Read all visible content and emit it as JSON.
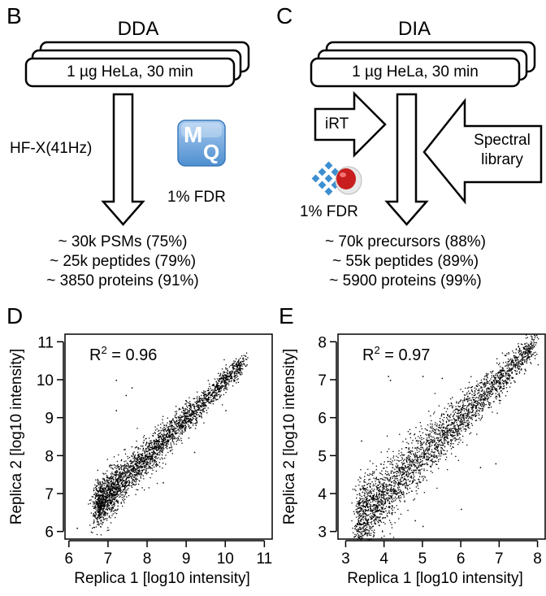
{
  "panels": {
    "B": {
      "letter": "B",
      "title": "DDA",
      "sample_label": "1 µg HeLa, 30 min",
      "instrument_label": "HF-X(41Hz)",
      "software_icon": "maxquant-icon",
      "software_icon_text_top": "M",
      "software_icon_text_bottom": "Q",
      "fdr_label": "1% FDR",
      "results": [
        "~ 30k PSMs (75%)",
        "~ 25k peptides (79%)",
        "~ 3850 proteins (91%)"
      ]
    },
    "C": {
      "letter": "C",
      "title": "DIA",
      "sample_label": "1 µg HeLa, 30 min",
      "irt_label": "iRT",
      "library_label_line1": "Spectral",
      "library_label_line2": "library",
      "software_icon": "spectronaut-icon",
      "fdr_label": "1% FDR",
      "results": [
        "~ 70k precursors (88%)",
        "~ 55k peptides (89%)",
        "~ 5900 proteins (99%)"
      ]
    },
    "D": {
      "letter": "D"
    },
    "E": {
      "letter": "E"
    }
  },
  "colors": {
    "maxquant_blue": "#5b9bd8",
    "maxquant_light": "#a9ccf0",
    "spectronaut_blue": "#3d8fd0",
    "spectronaut_red": "#c81e1e"
  },
  "chart_data": [
    {
      "panel": "D",
      "type": "scatter",
      "title": "",
      "annotation": "R² = 0.96",
      "annotation_base": "R",
      "annotation_sup": "2",
      "annotation_rest": " = 0.96",
      "xlabel": "Replica 1 [log10 intensity]",
      "ylabel": "Replica 2 [log10 intensity]",
      "xlim": [
        5.9,
        11.2
      ],
      "ylim": [
        5.8,
        11.2
      ],
      "xticks": [
        6,
        7,
        8,
        9,
        10,
        11
      ],
      "yticks": [
        6,
        7,
        8,
        9,
        10,
        11
      ],
      "grid": false,
      "r_squared": 0.96,
      "trend": {
        "x_range": [
          6.2,
          10.45
        ],
        "slope": 1.0,
        "intercept": 0.0,
        "spread": 0.13
      },
      "n_points_approx": 3850,
      "outliers": [
        [
          7.2,
          10.0
        ],
        [
          7.6,
          9.8
        ],
        [
          7.45,
          9.6
        ],
        [
          7.2,
          9.2
        ],
        [
          10.0,
          9.2
        ],
        [
          9.2,
          8.1
        ],
        [
          8.4,
          7.3
        ],
        [
          6.85,
          6.25
        ],
        [
          6.2,
          6.1
        ]
      ]
    },
    {
      "panel": "E",
      "type": "scatter",
      "title": "",
      "annotation": "R² = 0.97",
      "annotation_base": "R",
      "annotation_sup": "2",
      "annotation_rest": " = 0.97",
      "xlabel": "Replica 1 [log10 intensity]",
      "ylabel": "Replica 2 [log10 intensity]",
      "xlim": [
        2.8,
        8.2
      ],
      "ylim": [
        2.8,
        8.2
      ],
      "xticks": [
        3,
        4,
        5,
        6,
        7,
        8
      ],
      "yticks": [
        3,
        4,
        5,
        6,
        7,
        8
      ],
      "grid": false,
      "r_squared": 0.97,
      "trend": {
        "x_range": [
          2.8,
          7.9
        ],
        "slope": 1.0,
        "intercept": 0.0,
        "spread": 0.18
      },
      "n_points_approx": 5900,
      "outliers": [
        [
          4.1,
          7.1
        ],
        [
          4.15,
          7.0
        ],
        [
          5.0,
          7.1
        ],
        [
          5.5,
          7.05
        ],
        [
          3.4,
          5.4
        ],
        [
          7.4,
          6.95
        ],
        [
          6.9,
          4.8
        ],
        [
          6.5,
          4.7
        ],
        [
          6.0,
          3.6
        ],
        [
          5.0,
          3.15
        ],
        [
          4.8,
          3.3
        ]
      ]
    }
  ]
}
